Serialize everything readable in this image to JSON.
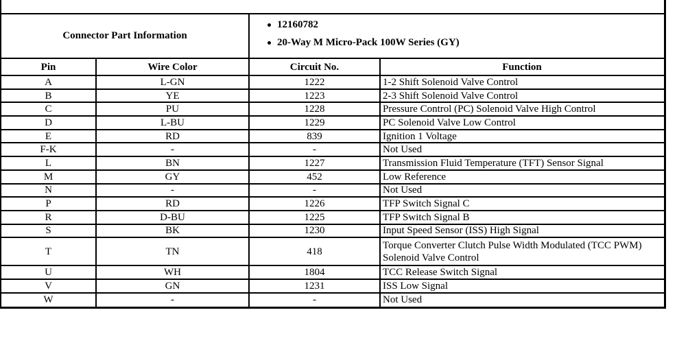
{
  "connector_info": {
    "label": "Connector Part Information",
    "details": [
      "12160782",
      "20-Way M Micro-Pack 100W Series (GY)"
    ]
  },
  "table": {
    "headers": [
      "Pin",
      "Wire Color",
      "Circuit No.",
      "Function"
    ],
    "rows": [
      {
        "pin": "A",
        "wire_color": "L-GN",
        "circuit": "1222",
        "function": "1-2 Shift Solenoid Valve Control"
      },
      {
        "pin": "B",
        "wire_color": "YE",
        "circuit": "1223",
        "function": "2-3 Shift Solenoid Valve Control"
      },
      {
        "pin": "C",
        "wire_color": "PU",
        "circuit": "1228",
        "function": "Pressure Control (PC) Solenoid Valve High Control"
      },
      {
        "pin": "D",
        "wire_color": "L-BU",
        "circuit": "1229",
        "function": "PC Solenoid Valve Low Control"
      },
      {
        "pin": "E",
        "wire_color": "RD",
        "circuit": "839",
        "function": "Ignition 1 Voltage"
      },
      {
        "pin": "F-K",
        "wire_color": "-",
        "circuit": "-",
        "function": "Not Used"
      },
      {
        "pin": "L",
        "wire_color": "BN",
        "circuit": "1227",
        "function": "Transmission Fluid Temperature (TFT) Sensor Signal"
      },
      {
        "pin": "M",
        "wire_color": "GY",
        "circuit": "452",
        "function": "Low Reference"
      },
      {
        "pin": "N",
        "wire_color": "-",
        "circuit": "-",
        "function": "Not Used"
      },
      {
        "pin": "P",
        "wire_color": "RD",
        "circuit": "1226",
        "function": "TFP Switch Signal C"
      },
      {
        "pin": "R",
        "wire_color": "D-BU",
        "circuit": "1225",
        "function": "TFP Switch Signal B"
      },
      {
        "pin": "S",
        "wire_color": "BK",
        "circuit": "1230",
        "function": "Input Speed Sensor (ISS) High Signal"
      },
      {
        "pin": "T",
        "wire_color": "TN",
        "circuit": "418",
        "function": "Torque Converter Clutch Pulse Width Modulated (TCC PWM) Solenoid Valve Control"
      },
      {
        "pin": "U",
        "wire_color": "WH",
        "circuit": "1804",
        "function": "TCC Release Switch Signal"
      },
      {
        "pin": "V",
        "wire_color": "GN",
        "circuit": "1231",
        "function": "ISS Low Signal"
      },
      {
        "pin": "W",
        "wire_color": "-",
        "circuit": "-",
        "function": "Not Used"
      }
    ]
  },
  "colors": {
    "border": "#000000",
    "background": "#ffffff",
    "text": "#000000"
  }
}
